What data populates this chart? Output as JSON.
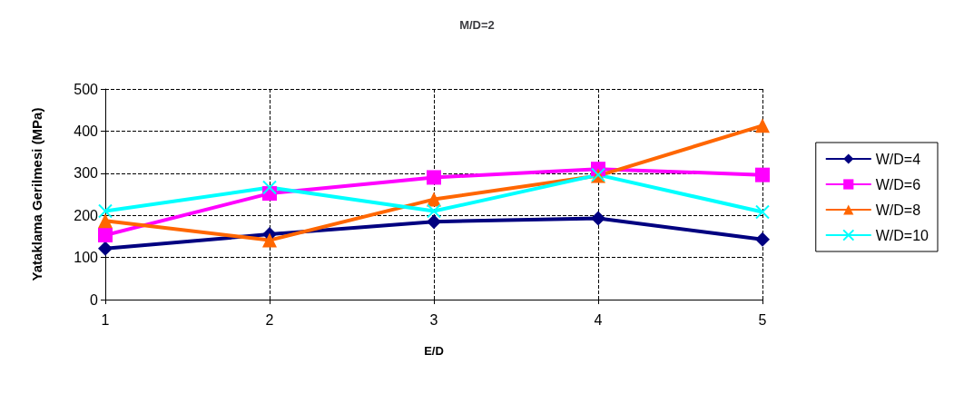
{
  "chart_data": {
    "type": "line",
    "title": "M/D=2",
    "xlabel": "E/D",
    "ylabel": "Yataklama Gerilmesi (MPa)",
    "x": [
      1,
      2,
      3,
      4,
      5
    ],
    "xlim": [
      1,
      5
    ],
    "xticks": [
      1,
      2,
      3,
      4,
      5
    ],
    "ylim": [
      0,
      500
    ],
    "yticks": [
      0,
      100,
      200,
      300,
      400,
      500
    ],
    "grid": true,
    "legend": "right",
    "line_style": "solid",
    "series": [
      {
        "name": "W/D=4",
        "color": "#000080",
        "marker": "diamond",
        "values": [
          121,
          155,
          185,
          193,
          143
        ]
      },
      {
        "name": "W/D=6",
        "color": "#ff00ff",
        "marker": "square",
        "values": [
          153,
          252,
          290,
          310,
          296
        ]
      },
      {
        "name": "W/D=8",
        "color": "#ff6600",
        "marker": "triangle",
        "values": [
          187,
          141,
          238,
          294,
          413
        ]
      },
      {
        "name": "W/D=10",
        "color": "#00ffff",
        "marker": "cross",
        "values": [
          210,
          266,
          210,
          296,
          208
        ]
      }
    ]
  }
}
